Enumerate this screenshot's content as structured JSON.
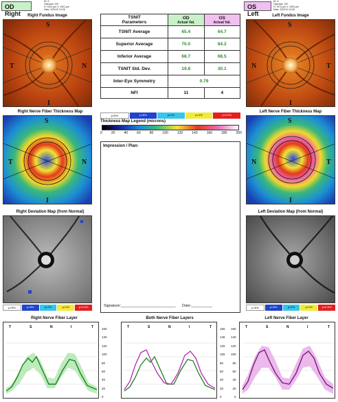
{
  "header": {
    "od_tag": "OD Right",
    "os_tag": "OS Left",
    "od_info": [
      "ID: 9",
      "Operator: 0/9",
      "H: 1901 µm  V: 1901 µm",
      "Date: 3/20/10 13:28"
    ],
    "os_info": [
      "ID: 9",
      "Operator: 0/9",
      "H: 1973 µm  V: 1904 µm",
      "Date: 3/20/10 13:28"
    ]
  },
  "titles": {
    "right_fundus": "Right Fundus Image",
    "left_fundus": "Left Fundus Image",
    "right_thickness": "Right Nerve Fiber Thickness Map",
    "left_thickness": "Left Nerve Fiber Thickness Map",
    "right_deviation": "Right Deviation Map (from Normal)",
    "left_deviation": "Left Deviation Map (from Normal)",
    "right_layer": "Right Nerve Fiber Layer",
    "both_layers": "Both Nerve Fiber Layers",
    "left_layer": "Left Nerve Fiber Layer"
  },
  "fundus_labels": {
    "right": {
      "t": "T",
      "n": "N",
      "s": "S",
      "i": "I"
    },
    "left": {
      "t": "T",
      "n": "N",
      "s": "S",
      "i": "I"
    }
  },
  "tsnit": {
    "parameters_header": "TSNIT\nParameters",
    "od_header": "OD",
    "os_header": "OS",
    "actual_val": "Actual Val.",
    "rows": [
      {
        "label": "TSNIT Average",
        "od": "65.4",
        "os": "64.7"
      },
      {
        "label": "Superior Average",
        "od": "70.0",
        "os": "84.2"
      },
      {
        "label": "Inferior Average",
        "od": "68.7",
        "os": "68.5"
      },
      {
        "label": "TSNIT Std. Dev.",
        "od": "19.8",
        "os": "30.1"
      }
    ],
    "symmetry_label": "Inter-Eye Symmetry",
    "symmetry_value": "0.79",
    "nfi_label": "NFI",
    "nfi_od": "11",
    "nfi_os": "4"
  },
  "probability_legend": [
    "p>5%",
    "p<5%",
    "p<2%",
    "p<1%",
    "p<0.5%"
  ],
  "thickness_legend": {
    "title": "Thickness Map Legend (microns)",
    "ticks": [
      "0",
      "20",
      "40",
      "60",
      "80",
      "100",
      "120",
      "140",
      "160",
      "180",
      "200"
    ]
  },
  "notes": {
    "impression_label": "Impression / Plan:",
    "signature_label": "Signature:__________________________",
    "date_label": "Date:__________"
  },
  "graphs": {
    "x_labels": [
      "T",
      "S",
      "N",
      "I",
      "T"
    ],
    "y_ticks": [
      "160",
      "140",
      "120",
      "100",
      "80",
      "60",
      "40",
      "20",
      "0"
    ]
  },
  "colors": {
    "od_green": "#2f9a2f",
    "os_magenta": "#c040c0",
    "green_band": "#9fe29f",
    "magenta_band": "#e6a8e6"
  }
}
